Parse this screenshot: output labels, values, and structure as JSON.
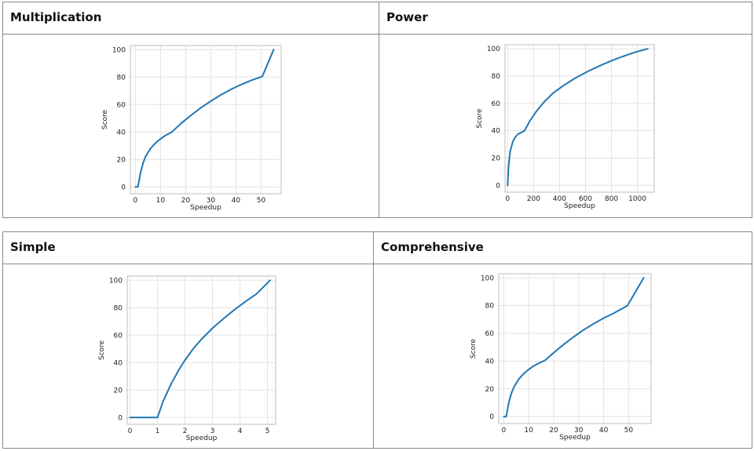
{
  "tables": [
    {
      "headers": [
        "Multiplication",
        "Power"
      ]
    },
    {
      "headers": [
        "Simple",
        "Comprehensive"
      ]
    }
  ],
  "chart_data": [
    {
      "panel": "Multiplication",
      "type": "line",
      "xlabel": "Speedup",
      "ylabel": "Score",
      "xlim": [
        -2,
        58
      ],
      "ylim": [
        -5,
        103
      ],
      "x_ticks": [
        0,
        10,
        20,
        30,
        40,
        50
      ],
      "y_ticks": [
        0,
        20,
        40,
        60,
        80,
        100
      ],
      "grid": true,
      "color": "#1f77b4",
      "x": [
        0,
        1,
        2,
        3,
        4,
        6,
        8,
        10,
        12,
        14.5,
        18,
        22,
        26,
        30,
        34,
        38,
        42,
        46,
        50.5,
        55
      ],
      "y": [
        0,
        0,
        10,
        17,
        22,
        28,
        32,
        35,
        37.5,
        40,
        46,
        52,
        57.5,
        62.5,
        67,
        71,
        74.5,
        77.5,
        80.5,
        100
      ]
    },
    {
      "panel": "Power",
      "type": "line",
      "xlabel": "Speedup",
      "ylabel": "Score",
      "xlim": [
        -20,
        1130
      ],
      "ylim": [
        -5,
        103
      ],
      "x_ticks": [
        0,
        200,
        400,
        600,
        800,
        1000
      ],
      "y_ticks": [
        0,
        20,
        40,
        60,
        80,
        100
      ],
      "grid": true,
      "color": "#1f77b4",
      "x": [
        0,
        5,
        10,
        20,
        40,
        60,
        80,
        100,
        130,
        170,
        220,
        280,
        350,
        430,
        520,
        620,
        720,
        820,
        920,
        1000,
        1080
      ],
      "y": [
        0,
        10,
        17,
        25,
        32,
        35.5,
        37.5,
        38.5,
        40,
        47,
        54,
        61,
        67.5,
        73,
        78.5,
        83.5,
        88,
        92,
        95.5,
        98,
        100
      ]
    },
    {
      "panel": "Simple",
      "type": "line",
      "xlabel": "Speedup",
      "ylabel": "Score",
      "xlim": [
        -0.1,
        5.3
      ],
      "ylim": [
        -5,
        103
      ],
      "x_ticks": [
        0,
        1,
        2,
        3,
        4,
        5
      ],
      "y_ticks": [
        0,
        20,
        40,
        60,
        80,
        100
      ],
      "grid": true,
      "color": "#1f77b4",
      "x": [
        0,
        1,
        1.2,
        1.5,
        1.8,
        2,
        2.3,
        2.6,
        3,
        3.4,
        3.8,
        4.2,
        4.6,
        5.1
      ],
      "y": [
        0,
        0,
        11.5,
        24.6,
        35.5,
        41.8,
        50,
        57,
        65,
        72,
        78.5,
        84.5,
        90,
        100
      ]
    },
    {
      "panel": "Comprehensive",
      "type": "line",
      "xlabel": "Speedup",
      "ylabel": "Score",
      "xlim": [
        -2,
        59
      ],
      "ylim": [
        -5,
        103
      ],
      "x_ticks": [
        0,
        10,
        20,
        30,
        40,
        50
      ],
      "y_ticks": [
        0,
        20,
        40,
        60,
        80,
        100
      ],
      "grid": true,
      "color": "#1f77b4",
      "x": [
        0,
        1,
        2,
        3,
        4,
        6,
        8,
        10,
        12,
        14,
        16.5,
        20,
        24,
        28,
        32,
        36,
        40,
        44,
        49.5,
        56
      ],
      "y": [
        0,
        0,
        10,
        16.5,
        21,
        27,
        31,
        34,
        36.5,
        38.5,
        40.5,
        46,
        52,
        57.5,
        62.5,
        67,
        71,
        74.5,
        80,
        100
      ]
    }
  ]
}
